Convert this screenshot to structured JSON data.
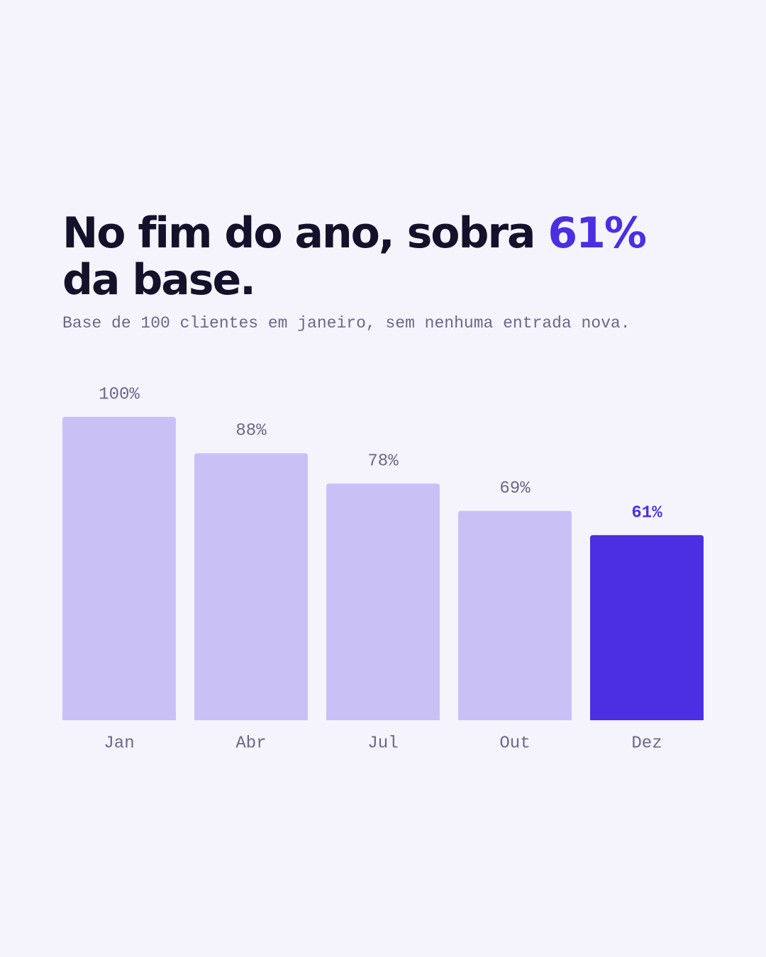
{
  "chart_data": {
    "type": "bar",
    "title": {
      "before": "No fim do ano, sobra ",
      "highlight": "61%",
      "after": " da base."
    },
    "subtitle": "Base de 100 clientes em janeiro, sem nenhuma entrada nova.",
    "categories": [
      "Jan",
      "Abr",
      "Jul",
      "Out",
      "Dez"
    ],
    "values": [
      100,
      88,
      78,
      69,
      61
    ],
    "value_labels": [
      "100%",
      "88%",
      "78%",
      "69%",
      "61%"
    ],
    "colors": [
      "#c9c1f6",
      "#c9c1f6",
      "#c9c1f6",
      "#c9c1f6",
      "#4c2ee3"
    ],
    "value_label_colors": [
      "#6b6788",
      "#6b6788",
      "#6b6788",
      "#6b6788",
      "#4c2ee3"
    ]
  }
}
